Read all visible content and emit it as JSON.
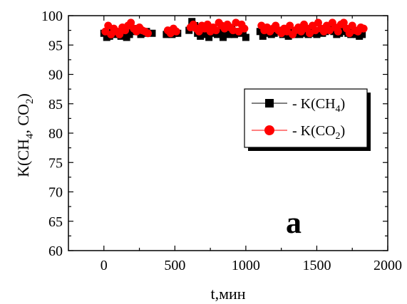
{
  "chart_data": {
    "type": "scatter",
    "xlabel": "t,мин",
    "ylabel_parts": [
      "K(CH",
      "4",
      ", CO",
      "2",
      ")"
    ],
    "xlim": [
      -250,
      2000
    ],
    "ylim": [
      60,
      100
    ],
    "xticks": [
      0,
      500,
      1000,
      1500,
      2000
    ],
    "yticks": [
      60,
      65,
      70,
      75,
      80,
      85,
      90,
      95,
      100
    ],
    "xtick_labels": [
      "0",
      "500",
      "1000",
      "1500",
      "2000"
    ],
    "ytick_labels": [
      "60",
      "65",
      "70",
      "75",
      "80",
      "85",
      "90",
      "95",
      "100"
    ],
    "grid": false,
    "legend_position": "center-right",
    "annotation": "a",
    "series": [
      {
        "legend_parts": [
          "- K(CH",
          "4",
          ")"
        ],
        "color": "#000000",
        "marker": "square",
        "x": [
          0,
          20,
          40,
          60,
          80,
          100,
          120,
          140,
          160,
          180,
          200,
          220,
          240,
          260,
          280,
          300,
          340,
          440,
          460,
          480,
          500,
          520,
          600,
          620,
          640,
          660,
          680,
          700,
          720,
          740,
          760,
          780,
          800,
          820,
          840,
          860,
          880,
          900,
          920,
          940,
          960,
          980,
          1000,
          1100,
          1120,
          1140,
          1160,
          1180,
          1200,
          1240,
          1260,
          1280,
          1300,
          1320,
          1340,
          1360,
          1380,
          1400,
          1420,
          1440,
          1460,
          1480,
          1500,
          1520,
          1540,
          1560,
          1580,
          1600,
          1620,
          1640,
          1660,
          1680,
          1700,
          1720,
          1740,
          1760,
          1780,
          1800,
          1820
        ],
        "y": [
          97.0,
          96.3,
          96.5,
          97.3,
          96.8,
          97.0,
          96.5,
          97.3,
          96.3,
          96.8,
          97.3,
          97.8,
          97.3,
          96.8,
          97.0,
          97.3,
          97.0,
          96.8,
          97.3,
          96.8,
          97.0,
          97.0,
          97.5,
          99.0,
          98.3,
          97.0,
          96.5,
          97.3,
          96.8,
          96.3,
          97.0,
          97.5,
          96.8,
          97.3,
          96.3,
          97.5,
          96.8,
          98.0,
          96.8,
          97.3,
          97.0,
          97.3,
          96.3,
          97.3,
          96.5,
          97.0,
          97.3,
          96.8,
          97.0,
          97.5,
          96.8,
          97.0,
          96.5,
          97.3,
          96.8,
          97.0,
          96.8,
          97.0,
          97.3,
          96.8,
          97.3,
          97.0,
          96.8,
          97.3,
          97.0,
          97.3,
          97.5,
          97.8,
          97.3,
          96.8,
          97.0,
          97.3,
          97.5,
          97.0,
          96.8,
          97.3,
          96.8,
          96.5,
          96.8
        ]
      },
      {
        "legend_parts": [
          "- K(CO",
          "2",
          ")"
        ],
        "color": "#ff0000",
        "marker": "circle",
        "x": [
          10,
          30,
          50,
          70,
          90,
          110,
          130,
          150,
          170,
          190,
          210,
          230,
          250,
          270,
          290,
          310,
          450,
          470,
          490,
          510,
          610,
          630,
          650,
          670,
          690,
          710,
          730,
          750,
          770,
          790,
          810,
          830,
          850,
          870,
          890,
          910,
          930,
          950,
          970,
          990,
          1110,
          1130,
          1150,
          1170,
          1190,
          1210,
          1230,
          1250,
          1270,
          1290,
          1310,
          1330,
          1350,
          1370,
          1390,
          1410,
          1430,
          1450,
          1470,
          1490,
          1510,
          1530,
          1550,
          1570,
          1590,
          1610,
          1630,
          1650,
          1670,
          1690,
          1710,
          1730,
          1750,
          1770,
          1790,
          1810,
          1830
        ],
        "y": [
          97.3,
          98.3,
          96.8,
          97.8,
          97.3,
          96.8,
          98.0,
          97.5,
          98.3,
          98.8,
          97.8,
          97.3,
          98.0,
          97.5,
          97.3,
          97.0,
          97.5,
          97.0,
          97.8,
          97.3,
          98.0,
          98.5,
          97.8,
          97.3,
          98.3,
          97.8,
          98.5,
          97.3,
          98.0,
          97.5,
          98.8,
          98.3,
          97.8,
          98.5,
          98.0,
          97.5,
          98.8,
          97.3,
          98.5,
          97.8,
          98.3,
          97.5,
          98.0,
          97.3,
          97.8,
          98.3,
          97.5,
          97.0,
          97.8,
          97.3,
          98.3,
          96.8,
          97.5,
          98.0,
          97.3,
          98.5,
          97.8,
          97.0,
          98.3,
          97.5,
          98.8,
          97.8,
          97.3,
          98.3,
          97.5,
          98.8,
          98.0,
          97.3,
          98.5,
          98.8,
          97.8,
          97.0,
          98.3,
          97.5,
          97.3,
          98.0,
          97.8
        ]
      }
    ]
  }
}
